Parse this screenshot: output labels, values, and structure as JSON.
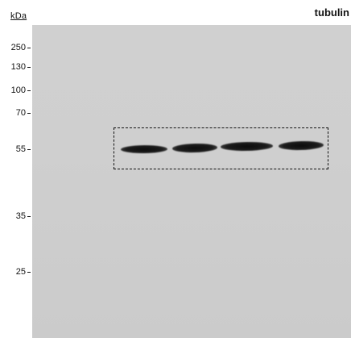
{
  "unit_label": "kDa",
  "target_label": "tubulin",
  "markers": [
    {
      "label": "250",
      "kda": 250
    },
    {
      "label": "130",
      "kda": 130
    },
    {
      "label": "100",
      "kda": 100
    },
    {
      "label": "70",
      "kda": 70
    },
    {
      "label": "55",
      "kda": 55
    },
    {
      "label": "35",
      "kda": 35
    },
    {
      "label": "25",
      "kda": 25
    }
  ],
  "band_count": 4,
  "highlight_style": "dashed",
  "colors": {
    "membrane": "#cfcfcf",
    "band": "#111111",
    "text": "#111111"
  }
}
